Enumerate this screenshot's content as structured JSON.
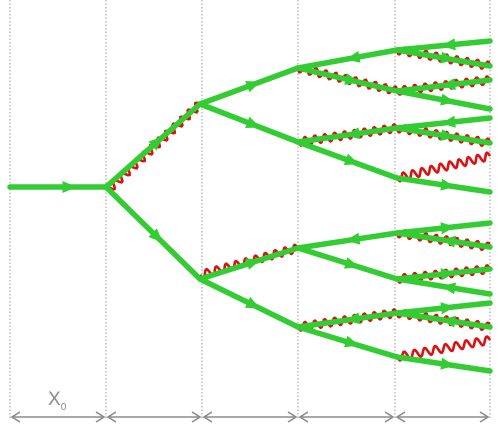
{
  "diagram": {
    "interval_label_main": "X",
    "interval_label_sub": "0",
    "colors": {
      "particle": "#33cc33",
      "photon": "#dd1111",
      "gridline": "#9a9a9a",
      "arrow": "#8c8c8c",
      "label": "#8a8a8a"
    }
  }
}
